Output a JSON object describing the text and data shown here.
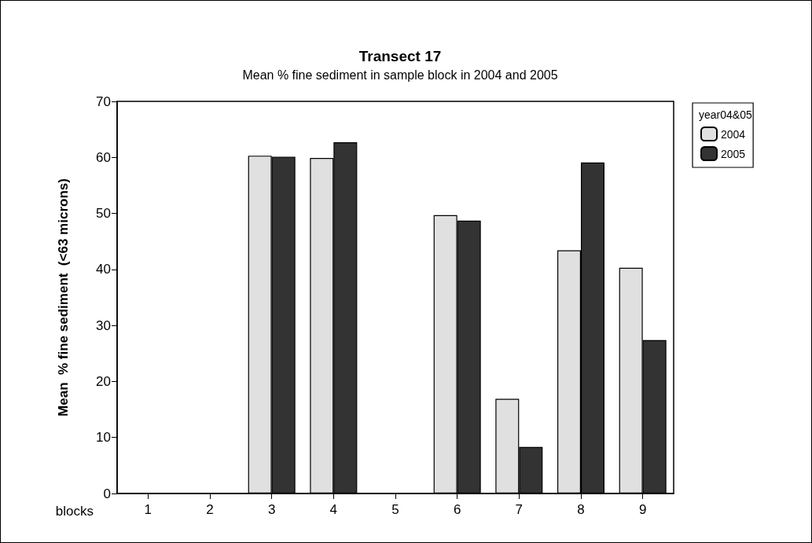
{
  "chart_data": {
    "type": "bar",
    "title": "Transect 17",
    "subtitle": "Mean % fine sediment in sample block in 2004 and 2005",
    "xlabel": "blocks",
    "ylabel": "Mean  % fine sediment  (<63 microns)",
    "legend_title": "year04&05",
    "categories": [
      "1",
      "2",
      "3",
      "4",
      "5",
      "6",
      "7",
      "8",
      "9"
    ],
    "series": [
      {
        "name": "2004",
        "color": "#e0e0e0",
        "values": [
          null,
          null,
          60.3,
          59.9,
          null,
          49.7,
          16.9,
          43.4,
          40.3
        ]
      },
      {
        "name": "2005",
        "color": "#333333",
        "values": [
          null,
          null,
          60.1,
          62.7,
          null,
          48.7,
          8.3,
          59.1,
          27.4
        ]
      }
    ],
    "ylim": [
      0,
      70
    ],
    "yticks": [
      0,
      10,
      20,
      30,
      40,
      50,
      60,
      70
    ],
    "grid": false,
    "legend": "top right"
  }
}
